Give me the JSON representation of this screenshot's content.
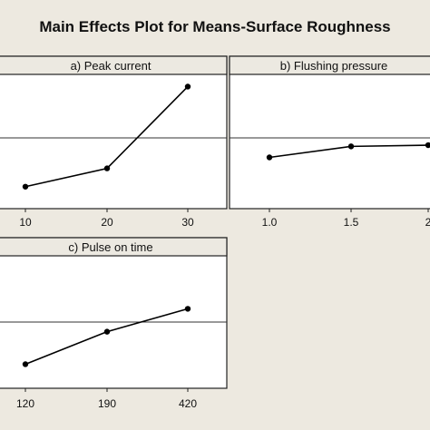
{
  "title": "Main Effects Plot for Means-Surface Roughness",
  "chart_data": [
    {
      "type": "line",
      "panel_title": "a) Peak current",
      "categories": [
        "10",
        "20",
        "30"
      ],
      "values": [
        0.18,
        0.33,
        1.0
      ],
      "ylim": [
        0,
        1.1
      ],
      "reference_line": 0.58
    },
    {
      "type": "line",
      "panel_title": "b) Flushing pressure",
      "categories": [
        "1.0",
        "1.5",
        "2.0"
      ],
      "tick_labels_visible": [
        "1.0",
        "1.5",
        "2"
      ],
      "values": [
        0.42,
        0.51,
        0.52
      ],
      "ylim": [
        0,
        1.1
      ],
      "reference_line": 0.58
    },
    {
      "type": "line",
      "panel_title": "c) Pulse on time",
      "categories": [
        "120",
        "190",
        "420"
      ],
      "values": [
        0.2,
        0.47,
        0.66
      ],
      "ylim": [
        0,
        1.1
      ],
      "reference_line": 0.55
    }
  ]
}
